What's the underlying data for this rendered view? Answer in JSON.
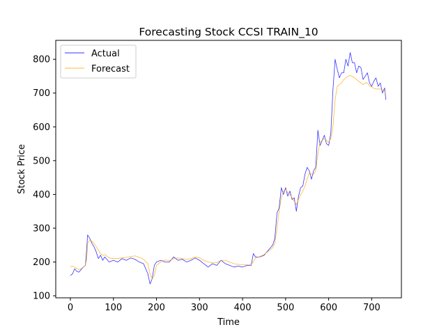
{
  "chart_data": {
    "type": "line",
    "title": "Forecasting Stock CCSI TRAIN_10",
    "xlabel": "Time",
    "ylabel": "Stock Price",
    "xlim": [
      -34,
      769
    ],
    "ylim": [
      94,
      856
    ],
    "xticks": [
      0,
      100,
      200,
      300,
      400,
      500,
      600,
      700
    ],
    "yticks": [
      100,
      200,
      300,
      400,
      500,
      600,
      700,
      800
    ],
    "grid": false,
    "legend_position": "top-left",
    "series": [
      {
        "name": "Actual",
        "color": "#0000ff",
        "x": [
          0,
          5,
          10,
          15,
          20,
          25,
          30,
          35,
          38,
          40,
          45,
          50,
          55,
          60,
          65,
          70,
          75,
          80,
          90,
          100,
          110,
          120,
          130,
          140,
          150,
          160,
          170,
          180,
          185,
          190,
          195,
          200,
          210,
          220,
          230,
          240,
          250,
          260,
          270,
          280,
          290,
          300,
          310,
          320,
          330,
          340,
          350,
          360,
          370,
          380,
          390,
          400,
          410,
          420,
          425,
          430,
          440,
          450,
          460,
          470,
          475,
          480,
          485,
          490,
          495,
          500,
          505,
          510,
          515,
          520,
          525,
          530,
          535,
          540,
          545,
          550,
          555,
          560,
          565,
          570,
          575,
          580,
          585,
          590,
          595,
          600,
          605,
          610,
          615,
          620,
          625,
          630,
          635,
          640,
          645,
          650,
          655,
          660,
          665,
          670,
          675,
          680,
          685,
          690,
          695,
          700,
          705,
          710,
          715,
          720,
          725,
          730,
          733
        ],
        "y": [
          160,
          165,
          180,
          172,
          170,
          178,
          185,
          190,
          240,
          280,
          270,
          255,
          245,
          230,
          210,
          220,
          205,
          215,
          200,
          205,
          200,
          210,
          205,
          212,
          208,
          200,
          195,
          165,
          135,
          150,
          190,
          200,
          205,
          200,
          200,
          215,
          205,
          208,
          200,
          205,
          212,
          205,
          195,
          185,
          195,
          190,
          205,
          195,
          190,
          185,
          188,
          185,
          190,
          190,
          225,
          215,
          215,
          220,
          235,
          250,
          270,
          345,
          360,
          420,
          400,
          420,
          395,
          410,
          385,
          390,
          350,
          395,
          420,
          425,
          460,
          480,
          470,
          445,
          470,
          480,
          590,
          545,
          560,
          575,
          550,
          545,
          580,
          710,
          800,
          770,
          745,
          760,
          760,
          800,
          780,
          820,
          790,
          790,
          760,
          780,
          775,
          740,
          750,
          760,
          730,
          720,
          735,
          745,
          720,
          730,
          700,
          715,
          680
        ]
      },
      {
        "name": "Forecast",
        "color": "#ffa500",
        "x": [
          0,
          5,
          10,
          15,
          20,
          25,
          30,
          35,
          38,
          40,
          45,
          50,
          55,
          60,
          65,
          70,
          75,
          80,
          90,
          100,
          110,
          120,
          130,
          140,
          150,
          160,
          170,
          180,
          185,
          190,
          195,
          200,
          210,
          220,
          230,
          240,
          250,
          260,
          270,
          280,
          290,
          300,
          310,
          320,
          330,
          340,
          350,
          360,
          370,
          380,
          390,
          400,
          410,
          420,
          425,
          430,
          440,
          450,
          460,
          470,
          475,
          480,
          485,
          490,
          495,
          500,
          505,
          510,
          515,
          520,
          525,
          530,
          535,
          540,
          545,
          550,
          555,
          560,
          565,
          570,
          575,
          580,
          585,
          590,
          595,
          600,
          605,
          610,
          615,
          620,
          625,
          630,
          635,
          640,
          645,
          650,
          655,
          660,
          665,
          670,
          675,
          680,
          685,
          690,
          695,
          700,
          705,
          710,
          715,
          720,
          725,
          730,
          733
        ],
        "y": [
          185,
          188,
          185,
          180,
          178,
          180,
          185,
          190,
          210,
          255,
          265,
          262,
          255,
          245,
          235,
          225,
          220,
          222,
          212,
          210,
          210,
          212,
          214,
          216,
          218,
          214,
          208,
          195,
          165,
          150,
          160,
          190,
          200,
          206,
          204,
          210,
          212,
          210,
          208,
          210,
          215,
          212,
          205,
          200,
          198,
          198,
          205,
          205,
          200,
          195,
          193,
          192,
          192,
          193,
          200,
          212,
          216,
          222,
          232,
          242,
          255,
          300,
          350,
          390,
          410,
          415,
          405,
          400,
          390,
          380,
          370,
          385,
          400,
          410,
          425,
          445,
          465,
          460,
          460,
          470,
          520,
          555,
          560,
          565,
          560,
          555,
          565,
          600,
          680,
          720,
          725,
          730,
          740,
          745,
          750,
          752,
          750,
          745,
          740,
          735,
          730,
          725,
          730,
          730,
          722,
          718,
          714,
          712,
          712,
          712,
          710,
          705,
          695
        ]
      }
    ]
  }
}
